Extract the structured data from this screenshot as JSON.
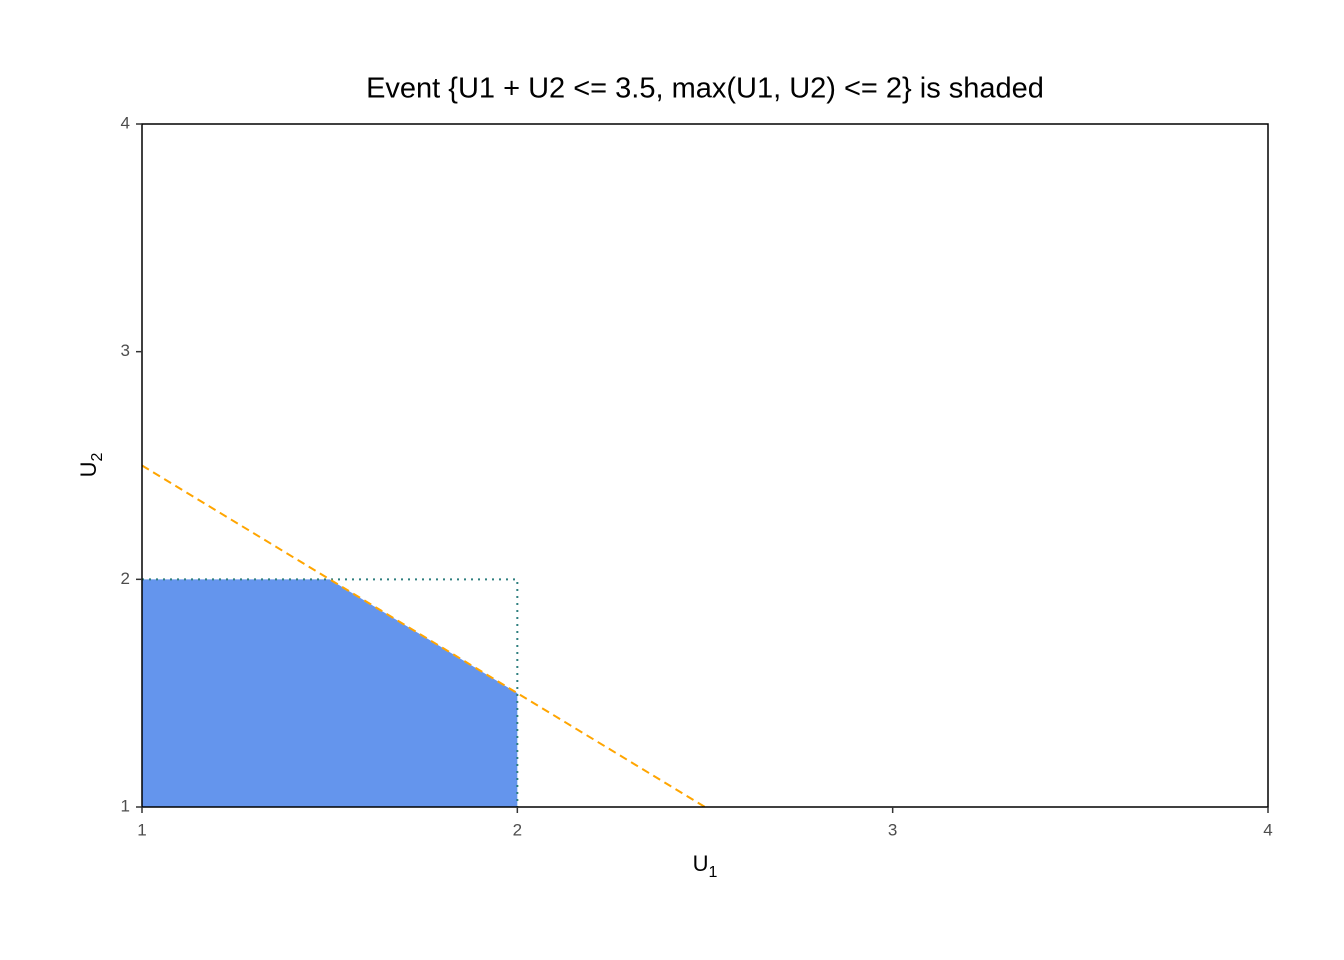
{
  "chart_data": {
    "type": "line",
    "title": "Event {U1 + U2 <= 3.5, max(U1, U2) <= 2} is shaded",
    "xlabel": {
      "text": "U",
      "subscript": "1"
    },
    "ylabel": {
      "text": "U",
      "subscript": "2"
    },
    "xlim": [
      1,
      4
    ],
    "ylim": [
      1,
      4
    ],
    "xticks": [
      1,
      2,
      3,
      4
    ],
    "yticks": [
      1,
      2,
      3,
      4
    ],
    "grid": false,
    "series": [
      {
        "style": "filled",
        "color": "#6495ed",
        "x": [
          1,
          1,
          1.5,
          2,
          2
        ],
        "values": [
          1,
          2,
          2,
          1.5,
          1
        ]
      },
      {
        "style": "dotted",
        "color": "#2f7f7f",
        "x": [
          1,
          2,
          2
        ],
        "values": [
          2,
          2,
          1
        ]
      },
      {
        "style": "dashed",
        "color": "#ffa500",
        "x": [
          1,
          2.5
        ],
        "values": [
          2.5,
          1
        ]
      }
    ]
  }
}
